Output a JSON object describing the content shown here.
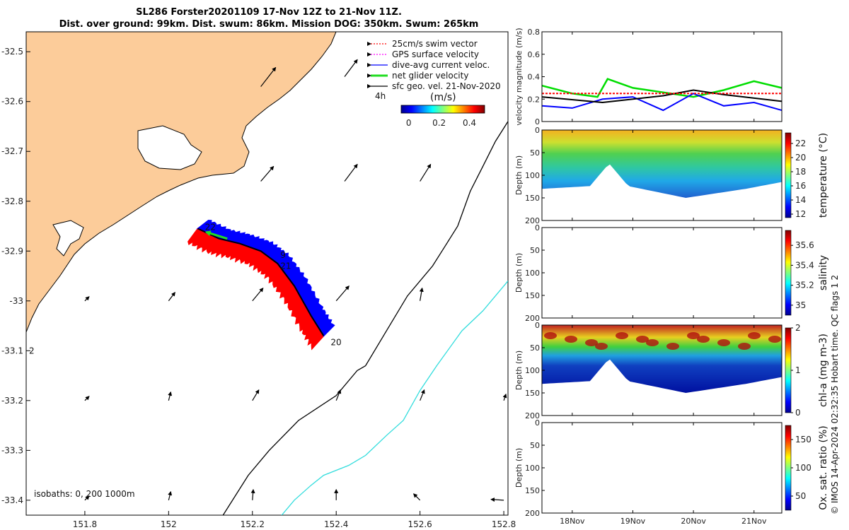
{
  "title_line1": "SL286 Forster20201109 17-Nov 12Z to 21-Nov 11Z.",
  "title_line2": "Dist. over ground: 99km. Dist. swum: 86km. Mission DOG: 350km. Swum: 265km",
  "credit": "© IMOS 14-Apr-2024 02:32:35 Hobart time. QC flags 1  2",
  "colors": {
    "land": "#fccc9a",
    "glider_red": "#ff0000",
    "glider_blue": "#0000ff",
    "net_green": "#22dd22",
    "isobath_200": "#000000",
    "isobath_1000": "#33dddd"
  },
  "map": {
    "chart_data": {
      "type": "scatter",
      "x_ticks": [
        "151.8",
        "152",
        "152.2",
        "152.4",
        "152.6",
        "152.8"
      ],
      "x_tick_values": [
        151.8,
        152.0,
        152.2,
        152.4,
        152.6,
        152.8
      ],
      "y_ticks": [
        "-32.5",
        "-32.6",
        "-32.7",
        "-32.8",
        "-32.9",
        "-33",
        "-33.1",
        "-33.2",
        "-33.3",
        "-33.4"
      ],
      "y_tick_values": [
        -32.5,
        -32.6,
        -32.7,
        -32.8,
        -32.9,
        -33.0,
        -33.1,
        -33.2,
        -33.3,
        -33.4
      ],
      "xlim": [
        151.66,
        152.81
      ],
      "ylim": [
        -33.43,
        -32.46
      ],
      "glider_track": [
        [
          152.07,
          -32.855
        ],
        [
          152.12,
          -32.875
        ],
        [
          152.17,
          -32.885
        ],
        [
          152.22,
          -32.9
        ],
        [
          152.26,
          -32.925
        ],
        [
          152.3,
          -32.97
        ],
        [
          152.34,
          -33.03
        ],
        [
          152.37,
          -33.07
        ]
      ],
      "day_labels": [
        {
          "text": "22",
          "lon": 152.08,
          "lat": -32.852
        },
        {
          "text": "9",
          "lon": 152.26,
          "lat": -32.908
        },
        {
          "text": "21",
          "lon": 152.26,
          "lat": -32.93
        },
        {
          "text": "20",
          "lon": 152.38,
          "lat": -33.083
        },
        {
          "text": "2",
          "lon": 151.66,
          "lat": -33.1
        }
      ],
      "net_velocity_arrow": [
        [
          152.14,
          -32.875
        ],
        [
          152.09,
          -32.862
        ]
      ],
      "isobath_200": [
        [
          152.13,
          -33.43
        ],
        [
          152.19,
          -33.35
        ],
        [
          152.24,
          -33.3
        ],
        [
          152.31,
          -33.24
        ],
        [
          152.4,
          -33.19
        ],
        [
          152.45,
          -33.14
        ],
        [
          152.47,
          -33.13
        ],
        [
          152.52,
          -33.06
        ],
        [
          152.57,
          -32.99
        ],
        [
          152.63,
          -32.93
        ],
        [
          152.66,
          -32.89
        ],
        [
          152.69,
          -32.85
        ],
        [
          152.72,
          -32.78
        ],
        [
          152.75,
          -32.73
        ],
        [
          152.78,
          -32.68
        ],
        [
          152.81,
          -32.64
        ]
      ],
      "isobath_1000": [
        [
          152.27,
          -33.43
        ],
        [
          152.3,
          -33.4
        ],
        [
          152.34,
          -33.37
        ],
        [
          152.37,
          -33.35
        ],
        [
          152.43,
          -33.33
        ],
        [
          152.47,
          -33.31
        ],
        [
          152.52,
          -33.27
        ],
        [
          152.56,
          -33.24
        ],
        [
          152.6,
          -33.18
        ],
        [
          152.64,
          -33.13
        ],
        [
          152.7,
          -33.06
        ],
        [
          152.75,
          -33.02
        ],
        [
          152.81,
          -32.96
        ]
      ],
      "vectors": [
        {
          "lon": 152.22,
          "lat": -32.57,
          "u": 0.35,
          "v": 0.45
        },
        {
          "lon": 152.42,
          "lat": -32.55,
          "u": 0.3,
          "v": 0.4
        },
        {
          "lon": 152.22,
          "lat": -32.76,
          "u": 0.3,
          "v": 0.35
        },
        {
          "lon": 152.42,
          "lat": -32.76,
          "u": 0.3,
          "v": 0.4
        },
        {
          "lon": 152.6,
          "lat": -32.76,
          "u": 0.25,
          "v": 0.4
        },
        {
          "lon": 151.8,
          "lat": -33.0,
          "u": 0.1,
          "v": 0.1
        },
        {
          "lon": 152.0,
          "lat": -33.0,
          "u": 0.15,
          "v": 0.2
        },
        {
          "lon": 152.2,
          "lat": -33.0,
          "u": 0.25,
          "v": 0.3
        },
        {
          "lon": 152.4,
          "lat": -33.0,
          "u": 0.3,
          "v": 0.35
        },
        {
          "lon": 152.6,
          "lat": -33.0,
          "u": 0.05,
          "v": 0.3
        },
        {
          "lon": 151.8,
          "lat": -33.2,
          "u": 0.1,
          "v": 0.1
        },
        {
          "lon": 152.0,
          "lat": -33.2,
          "u": 0.05,
          "v": 0.2
        },
        {
          "lon": 152.2,
          "lat": -33.2,
          "u": 0.15,
          "v": 0.25
        },
        {
          "lon": 152.4,
          "lat": -33.2,
          "u": 0.1,
          "v": 0.25
        },
        {
          "lon": 152.6,
          "lat": -33.2,
          "u": 0.1,
          "v": 0.25
        },
        {
          "lon": 152.8,
          "lat": -33.2,
          "u": 0.05,
          "v": 0.15
        },
        {
          "lon": 151.8,
          "lat": -33.4,
          "u": 0.1,
          "v": 0.1
        },
        {
          "lon": 152.0,
          "lat": -33.4,
          "u": 0.05,
          "v": 0.2
        },
        {
          "lon": 152.2,
          "lat": -33.4,
          "u": 0.02,
          "v": 0.25
        },
        {
          "lon": 152.4,
          "lat": -33.4,
          "u": 0.0,
          "v": 0.25
        },
        {
          "lon": 152.6,
          "lat": -33.4,
          "u": -0.15,
          "v": 0.15
        },
        {
          "lon": 152.8,
          "lat": -33.4,
          "u": -0.3,
          "v": 0.02
        }
      ]
    },
    "legend": [
      {
        "label": "25cm/s swim vector",
        "color": "#ff0000",
        "style": "dotted"
      },
      {
        "label": "GPS surface velocity",
        "color": "#ff00ff",
        "style": "dotted"
      },
      {
        "label": "dive-avg current veloc.",
        "color": "#0000ff",
        "style": "solid"
      },
      {
        "label": "net glider velocity",
        "color": "#22dd22",
        "style": "thick"
      },
      {
        "label": "sfc geo. vel. 21-Nov-2020",
        "color": "#000000",
        "style": "solid"
      }
    ],
    "legend_4h": "4h",
    "colorbar_unit": "(m/s)",
    "colorbar_ticks": [
      "0",
      "0.2",
      "0.4"
    ],
    "isobaths_label": "isobaths: 0,  200  1000m"
  },
  "time_axis": {
    "xlim": [
      "2020-11-17T12:00",
      "2020-11-21T11:00"
    ],
    "ticks": [
      "18Nov",
      "19Nov",
      "20Nov",
      "21Nov"
    ],
    "tick_dates": [
      "2020-11-18",
      "2020-11-19",
      "2020-11-20",
      "2020-11-21"
    ]
  },
  "velocity_panel": {
    "chart_data": {
      "type": "line",
      "ylabel": "velocity magnitude (m/s)",
      "ylim": [
        0,
        0.8
      ],
      "y_ticks": [
        "0",
        "0.2",
        "0.4",
        "0.6",
        "0.8"
      ],
      "series": [
        {
          "color": "#00dd00",
          "x": [
            "2020-11-17T12:00",
            "2020-11-18T00:00",
            "2020-11-18T10:00",
            "2020-11-18T14:00",
            "2020-11-19T00:00",
            "2020-11-19T12:00",
            "2020-11-20T00:00",
            "2020-11-20T12:00",
            "2020-11-21T00:00",
            "2020-11-21T11:00"
          ],
          "values": [
            0.32,
            0.25,
            0.22,
            0.38,
            0.3,
            0.26,
            0.22,
            0.28,
            0.36,
            0.3
          ]
        },
        {
          "color": "#0000ff",
          "x": [
            "2020-11-17T12:00",
            "2020-11-18T00:00",
            "2020-11-18T12:00",
            "2020-11-19T00:00",
            "2020-11-19T12:00",
            "2020-11-20T00:00",
            "2020-11-20T12:00",
            "2020-11-21T00:00",
            "2020-11-21T11:00"
          ],
          "values": [
            0.14,
            0.12,
            0.2,
            0.22,
            0.1,
            0.25,
            0.14,
            0.17,
            0.1
          ]
        },
        {
          "color": "#000000",
          "x": [
            "2020-11-17T12:00",
            "2020-11-18T12:00",
            "2020-11-19T12:00",
            "2020-11-20T00:00",
            "2020-11-20T12:00",
            "2020-11-21T11:00"
          ],
          "values": [
            0.22,
            0.17,
            0.23,
            0.28,
            0.24,
            0.18
          ]
        },
        {
          "color": "#ff0000",
          "x": [
            "2020-11-17T12:00",
            "2020-11-21T11:00"
          ],
          "values": [
            0.25,
            0.25
          ]
        }
      ]
    }
  },
  "temperature_panel": {
    "chart_data": {
      "type": "heatmap",
      "ylabel": "Depth (m)",
      "ylim": [
        0,
        200
      ],
      "y_ticks": [
        "0",
        "50",
        "100",
        "150",
        "200"
      ],
      "colorbar_label": "temperature (°C)",
      "colorbar_ticks": [
        "12",
        "14",
        "16",
        "18",
        "20",
        "22"
      ],
      "colorbar_range": [
        11.5,
        23.5
      ]
    }
  },
  "salinity_panel": {
    "chart_data": {
      "type": "heatmap",
      "ylabel": "Depth (m)",
      "ylim": [
        0,
        200
      ],
      "y_ticks": [
        "0",
        "50",
        "100",
        "150",
        "200"
      ],
      "colorbar_label": "salinity",
      "colorbar_ticks": [
        "35",
        "35.2",
        "35.4",
        "35.6"
      ],
      "colorbar_range": [
        34.9,
        35.75
      ]
    }
  },
  "chla_panel": {
    "chart_data": {
      "type": "heatmap",
      "ylabel": "Depth (m)",
      "ylim": [
        0,
        200
      ],
      "y_ticks": [
        "0",
        "50",
        "100",
        "150",
        "200"
      ],
      "colorbar_label": "chl-a (mg m-3)",
      "colorbar_ticks": [
        "0",
        "1",
        "2"
      ],
      "colorbar_range": [
        0,
        2
      ]
    }
  },
  "oxygen_panel": {
    "chart_data": {
      "type": "heatmap",
      "ylabel": "Depth (m)",
      "ylim": [
        0,
        200
      ],
      "y_ticks": [
        "0",
        "50",
        "100",
        "150",
        "200"
      ],
      "colorbar_label": "Ox. sat. ratio (%)",
      "colorbar_ticks": [
        "50",
        "100",
        "150"
      ],
      "colorbar_range": [
        25,
        175
      ]
    }
  }
}
